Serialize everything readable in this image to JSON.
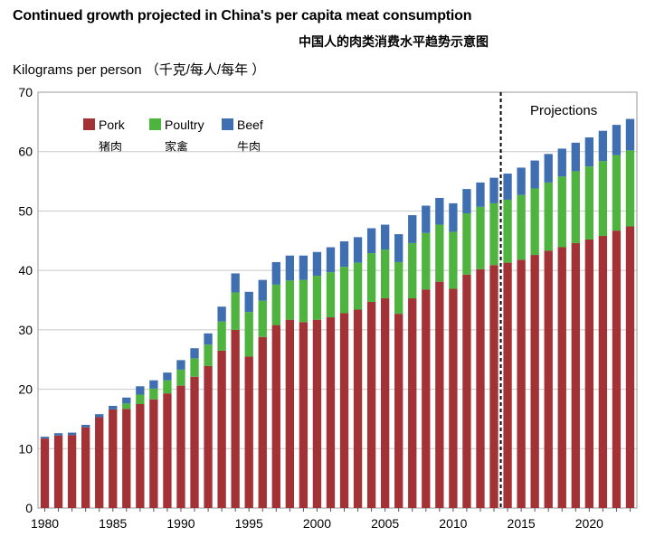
{
  "chart_data": {
    "type": "bar",
    "stacked": true,
    "title": "Continued growth projected in China's per capita meat consumption",
    "subtitle": "中国人的肉类消费水平趋势示意图",
    "ylabel": "Kilograms per person （千克/每人/每年 ）",
    "xlabel": "",
    "ylim": [
      0,
      70
    ],
    "yticks": [
      0,
      10,
      20,
      30,
      40,
      50,
      60,
      70
    ],
    "xticks": [
      "1980",
      "1985",
      "1990",
      "1995",
      "2000",
      "2005",
      "2010",
      "2015",
      "2020"
    ],
    "legend_position": "top-left",
    "grid": true,
    "annotation": "Projections",
    "projection_start_year": 2013,
    "categories": [
      1980,
      1981,
      1982,
      1983,
      1984,
      1985,
      1986,
      1987,
      1988,
      1989,
      1990,
      1991,
      1992,
      1993,
      1994,
      1995,
      1996,
      1997,
      1998,
      1999,
      2000,
      2001,
      2002,
      2003,
      2004,
      2005,
      2006,
      2007,
      2008,
      2009,
      2010,
      2011,
      2012,
      2013,
      2014,
      2015,
      2016,
      2017,
      2018,
      2019,
      2020,
      2021,
      2022,
      2023
    ],
    "series": [
      {
        "name": "Pork",
        "name_sub": "猪肉",
        "color": "#a33236",
        "values": [
          11.7,
          12.2,
          12.3,
          13.6,
          15.3,
          16.6,
          16.7,
          17.5,
          18.3,
          19.3,
          20.6,
          22.1,
          23.9,
          26.5,
          30.0,
          25.5,
          28.8,
          30.8,
          31.7,
          31.3,
          31.7,
          32.1,
          32.8,
          33.4,
          34.7,
          35.3,
          32.7,
          35.3,
          36.8,
          38.1,
          36.9,
          39.3,
          40.2,
          40.9,
          41.3,
          41.8,
          42.6,
          43.3,
          43.9,
          44.6,
          45.2,
          45.8,
          46.7,
          47.4
        ]
      },
      {
        "name": "Poultry",
        "name_sub": "家禽",
        "color": "#4fb33f",
        "values": [
          0.0,
          0.0,
          0.0,
          0.0,
          0.0,
          0.0,
          0.9,
          1.6,
          1.8,
          2.2,
          2.7,
          3.1,
          3.6,
          4.9,
          6.3,
          7.5,
          6.1,
          6.8,
          6.6,
          7.1,
          7.4,
          7.6,
          7.8,
          7.9,
          8.2,
          8.2,
          8.7,
          9.3,
          9.5,
          9.6,
          9.6,
          10.3,
          10.5,
          10.4,
          10.6,
          10.9,
          11.2,
          11.5,
          11.9,
          12.1,
          12.3,
          12.6,
          12.7,
          12.8
        ]
      },
      {
        "name": "Beef",
        "name_sub": "牛肉",
        "color": "#3f6fb0",
        "values": [
          0.3,
          0.4,
          0.4,
          0.4,
          0.5,
          0.6,
          1.0,
          1.4,
          1.4,
          1.3,
          1.6,
          1.7,
          1.9,
          2.5,
          3.2,
          3.4,
          3.5,
          3.8,
          4.2,
          4.1,
          4.0,
          4.2,
          4.3,
          4.3,
          4.2,
          4.2,
          4.7,
          4.7,
          4.6,
          4.5,
          4.8,
          4.1,
          4.1,
          4.3,
          4.4,
          4.6,
          4.7,
          4.8,
          4.7,
          4.8,
          4.9,
          5.1,
          5.1,
          5.3
        ]
      }
    ]
  }
}
